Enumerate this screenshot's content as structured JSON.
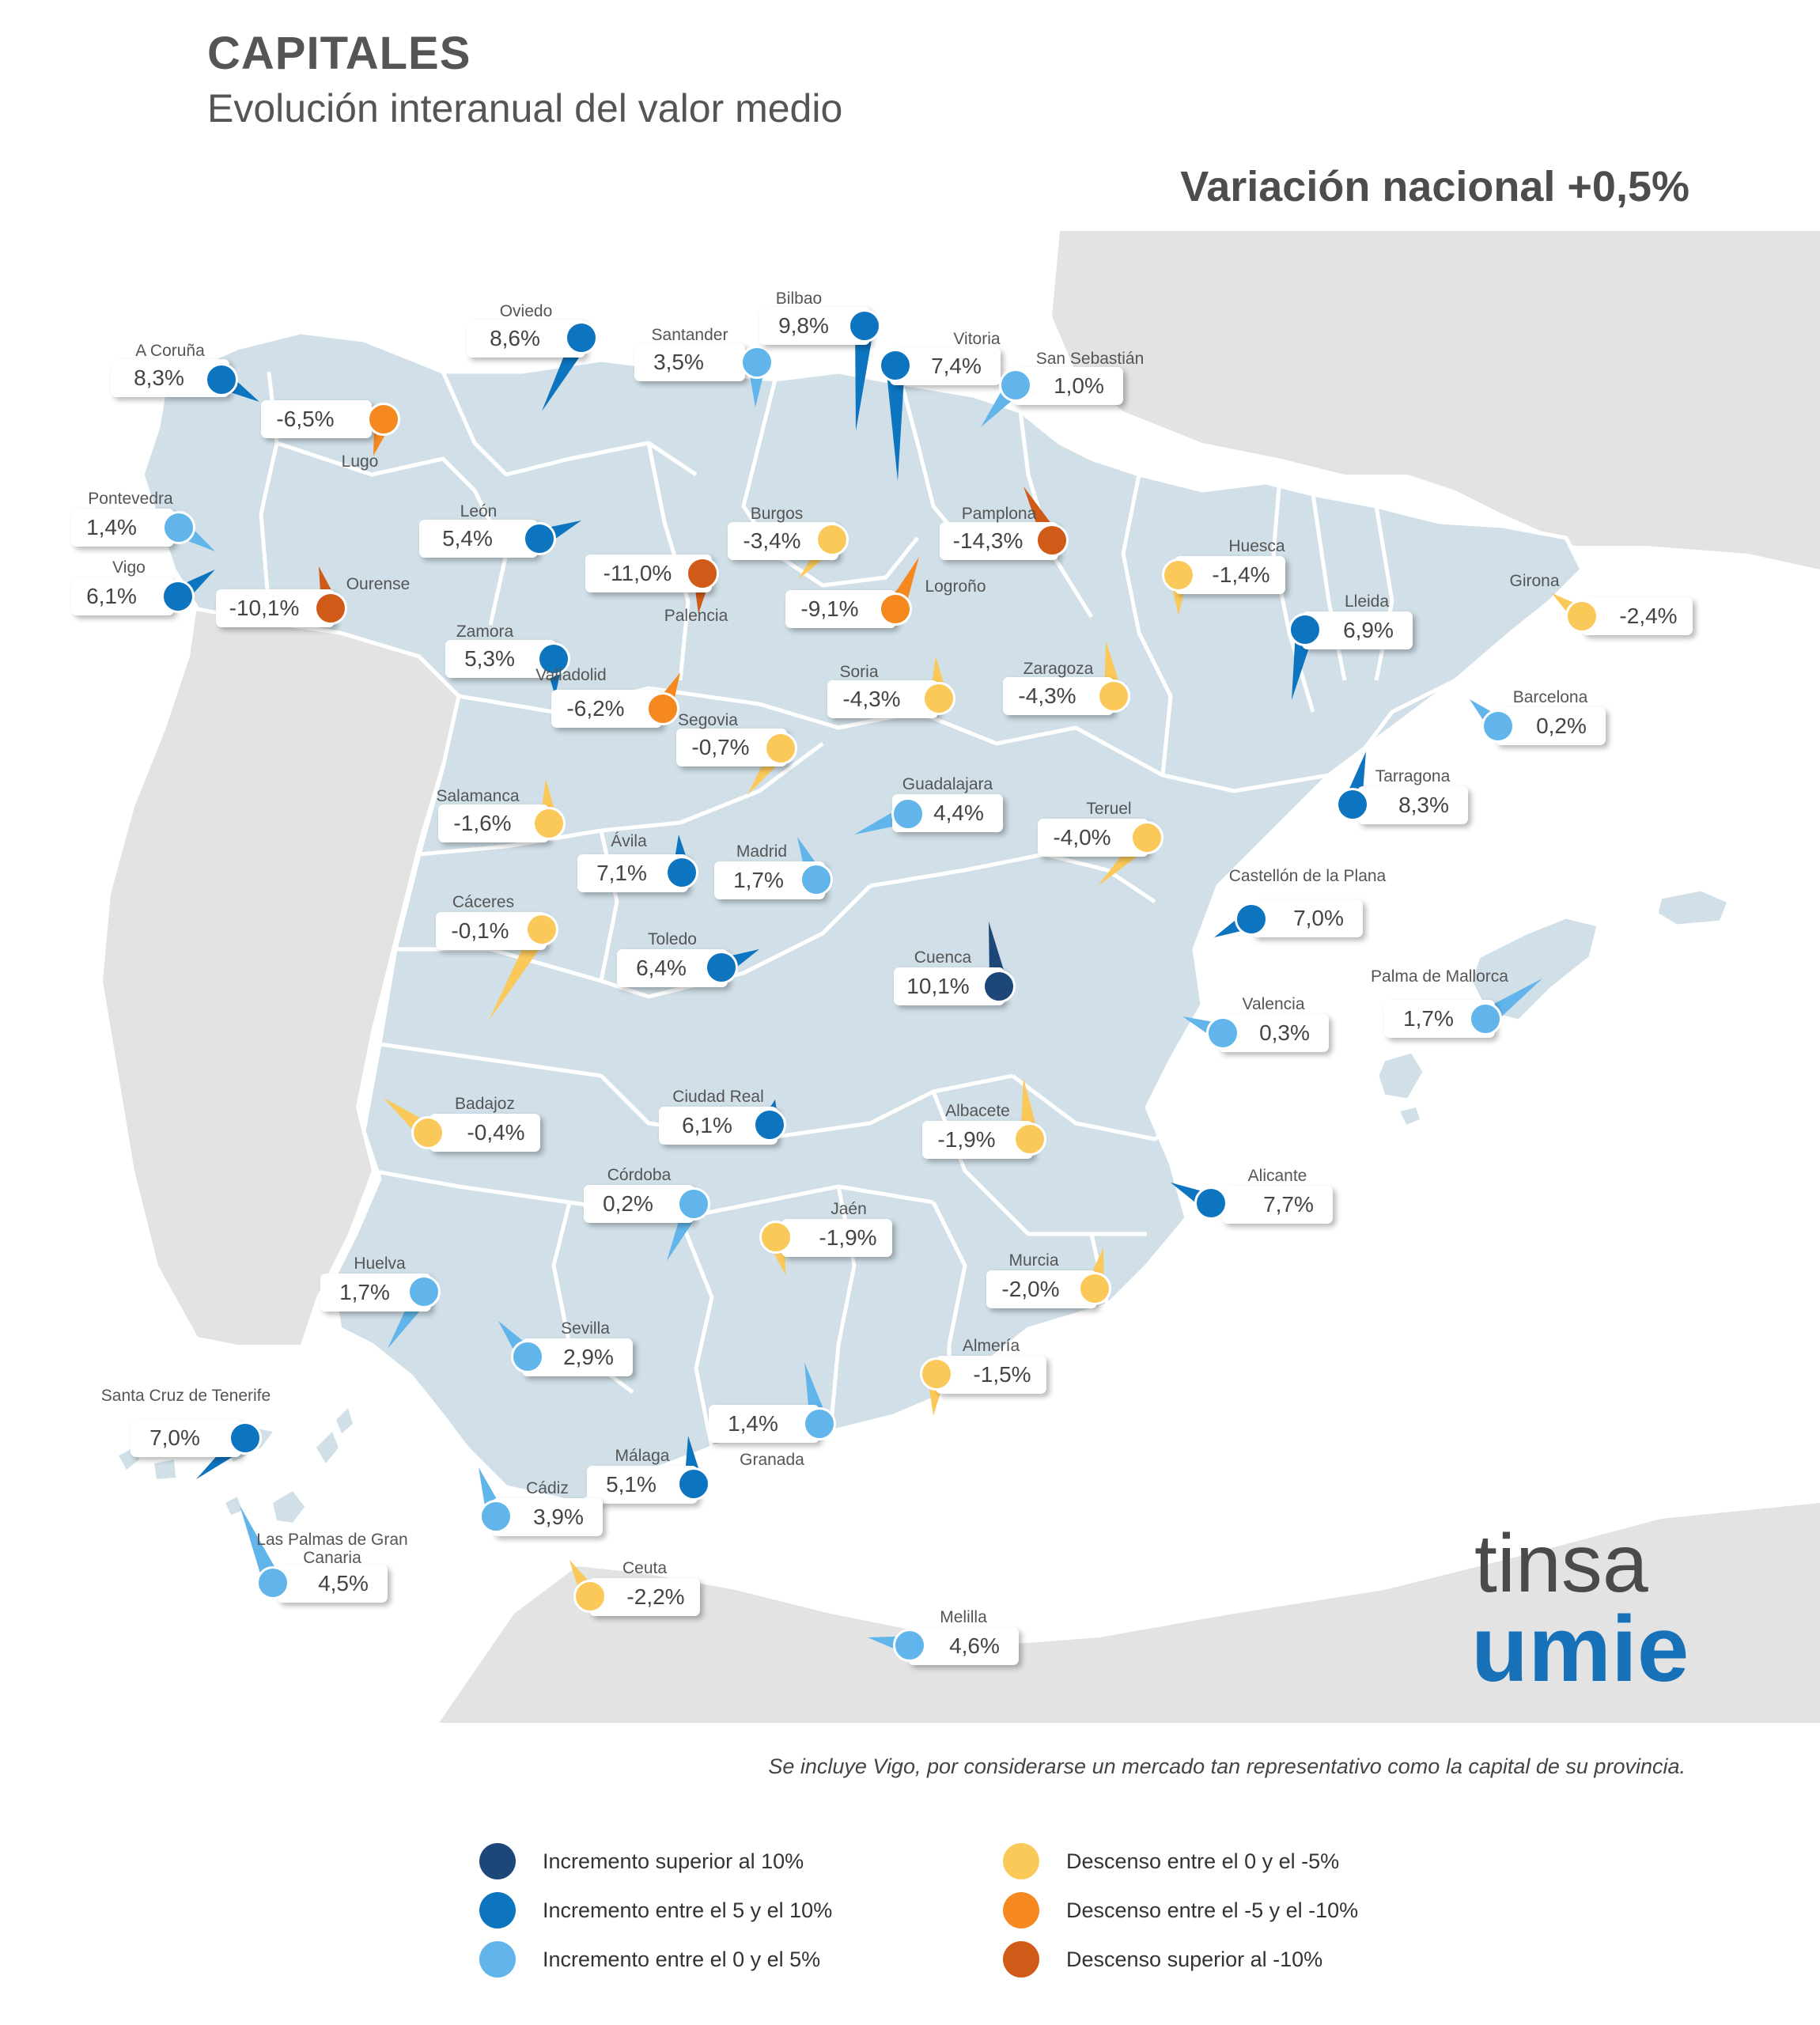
{
  "title": "CAPITALES",
  "subtitle": "Evolución interanual del valor medio",
  "national": "Variación nacional +0,5%",
  "note": "Se incluye Vigo, por considerarse un mercado tan representativo como la capital de su provincia.",
  "colors": {
    "c1": "#1d4779",
    "c2": "#0d74c0",
    "c3": "#61b5ea",
    "c4": "#fbc95a",
    "c5": "#f5891f",
    "c6": "#d05a18"
  },
  "legend": [
    {
      "label": "Incremento superior al 10%",
      "cat": "c1"
    },
    {
      "label": "Incremento entre el 5 y el 10%",
      "cat": "c2"
    },
    {
      "label": "Incremento entre el 0 y el 5%",
      "cat": "c3"
    },
    {
      "label": "Descenso entre el 0 y el -5%",
      "cat": "c4"
    },
    {
      "label": "Descenso entre el -5 y el -10%",
      "cat": "c5"
    },
    {
      "label": "Descenso superior al -10%",
      "cat": "c6"
    }
  ],
  "logo": {
    "line1": "tinsa",
    "line2": "umie"
  },
  "cities": [
    {
      "name": "A Coruña",
      "value": "8,3%",
      "cat": "c2"
    },
    {
      "name": "Oviedo",
      "value": "8,6%",
      "cat": "c2"
    },
    {
      "name": "Santander",
      "value": "3,5%",
      "cat": "c3"
    },
    {
      "name": "Bilbao",
      "value": "9,8%",
      "cat": "c2"
    },
    {
      "name": "Vitoria",
      "value": "7,4%",
      "cat": "c2"
    },
    {
      "name": "San Sebastián",
      "value": "1,0%",
      "cat": "c3"
    },
    {
      "name": "Lugo",
      "value": "-6,5%",
      "cat": "c5"
    },
    {
      "name": "Pontevedra",
      "value": "1,4%",
      "cat": "c3"
    },
    {
      "name": "Vigo",
      "value": "6,1%",
      "cat": "c2"
    },
    {
      "name": "Ourense",
      "value": "-10,1%",
      "cat": "c6"
    },
    {
      "name": "León",
      "value": "5,4%",
      "cat": "c2"
    },
    {
      "name": "Palencia",
      "value": "-11,0%",
      "cat": "c6"
    },
    {
      "name": "Burgos",
      "value": "-3,4%",
      "cat": "c4"
    },
    {
      "name": "Pamplona",
      "value": "-14,3%",
      "cat": "c6"
    },
    {
      "name": "Logroño",
      "value": "-9,1%",
      "cat": "c5"
    },
    {
      "name": "Huesca",
      "value": "-1,4%",
      "cat": "c4"
    },
    {
      "name": "Girona",
      "value": "-2,4%",
      "cat": "c4"
    },
    {
      "name": "Lleida",
      "value": "6,9%",
      "cat": "c2"
    },
    {
      "name": "Zamora",
      "value": "5,3%",
      "cat": "c2"
    },
    {
      "name": "Valladolid",
      "value": "-6,2%",
      "cat": "c5"
    },
    {
      "name": "Soria",
      "value": "-4,3%",
      "cat": "c4"
    },
    {
      "name": "Zaragoza",
      "value": "-4,3%",
      "cat": "c4"
    },
    {
      "name": "Barcelona",
      "value": "0,2%",
      "cat": "c3"
    },
    {
      "name": "Segovia",
      "value": "-0,7%",
      "cat": "c4"
    },
    {
      "name": "Salamanca",
      "value": "-1,6%",
      "cat": "c4"
    },
    {
      "name": "Guadalajara",
      "value": "4,4%",
      "cat": "c3"
    },
    {
      "name": "Teruel",
      "value": "-4,0%",
      "cat": "c4"
    },
    {
      "name": "Tarragona",
      "value": "8,3%",
      "cat": "c2"
    },
    {
      "name": "Ávila",
      "value": "7,1%",
      "cat": "c2"
    },
    {
      "name": "Madrid",
      "value": "1,7%",
      "cat": "c3"
    },
    {
      "name": "Cáceres",
      "value": "-0,1%",
      "cat": "c4"
    },
    {
      "name": "Castellón de la Plana",
      "value": "7,0%",
      "cat": "c2"
    },
    {
      "name": "Toledo",
      "value": "6,4%",
      "cat": "c2"
    },
    {
      "name": "Cuenca",
      "value": "10,1%",
      "cat": "c1"
    },
    {
      "name": "Palma de Mallorca",
      "value": "1,7%",
      "cat": "c3"
    },
    {
      "name": "Valencia",
      "value": "0,3%",
      "cat": "c3"
    },
    {
      "name": "Badajoz",
      "value": "-0,4%",
      "cat": "c4"
    },
    {
      "name": "Ciudad Real",
      "value": "6,1%",
      "cat": "c2"
    },
    {
      "name": "Albacete",
      "value": "-1,9%",
      "cat": "c4"
    },
    {
      "name": "Córdoba",
      "value": "0,2%",
      "cat": "c3"
    },
    {
      "name": "Alicante",
      "value": "7,7%",
      "cat": "c2"
    },
    {
      "name": "Jaén",
      "value": "-1,9%",
      "cat": "c4"
    },
    {
      "name": "Huelva",
      "value": "1,7%",
      "cat": "c3"
    },
    {
      "name": "Murcia",
      "value": "-2,0%",
      "cat": "c4"
    },
    {
      "name": "Sevilla",
      "value": "2,9%",
      "cat": "c3"
    },
    {
      "name": "Almería",
      "value": "-1,5%",
      "cat": "c4"
    },
    {
      "name": "Santa Cruz de Tenerife",
      "value": "7,0%",
      "cat": "c2"
    },
    {
      "name": "Granada",
      "value": "1,4%",
      "cat": "c3"
    },
    {
      "name": "Málaga",
      "value": "5,1%",
      "cat": "c2"
    },
    {
      "name": "Cádiz",
      "value": "3,9%",
      "cat": "c3"
    },
    {
      "name": "Las Palmas de Gran Canaria",
      "value": "4,5%",
      "cat": "c3"
    },
    {
      "name": "Ceuta",
      "value": "-2,2%",
      "cat": "c4"
    },
    {
      "name": "Melilla",
      "value": "4,6%",
      "cat": "c3"
    }
  ]
}
